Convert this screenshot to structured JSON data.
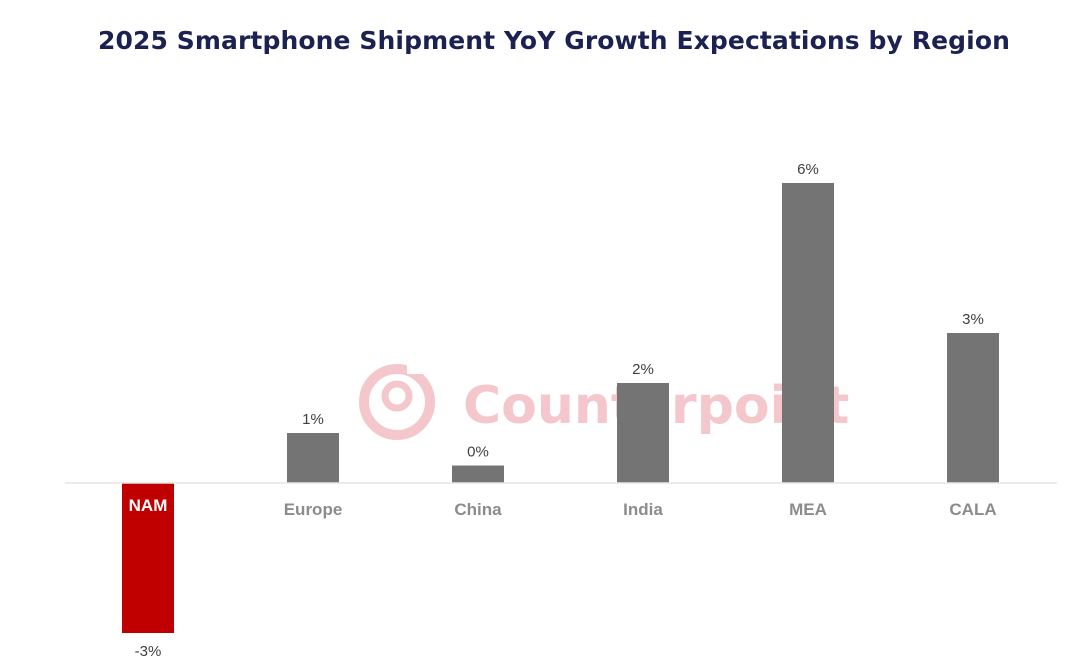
{
  "chart_data": {
    "type": "bar",
    "title": "2025 Smartphone Shipment YoY Growth Expectations by Region",
    "categories": [
      "NAM",
      "Europe",
      "China",
      "India",
      "MEA",
      "CALA"
    ],
    "values": [
      -3,
      1,
      0.35,
      2,
      6,
      3
    ],
    "data_labels": [
      "-3%",
      "1%",
      "0%",
      "2%",
      "6%",
      "3%"
    ],
    "highlight_category": "NAM",
    "unit": "%",
    "xlabel": "",
    "ylabel": "",
    "ylim": [
      -3.2,
      6
    ],
    "grid": false,
    "legend": "none",
    "colors": {
      "default_bar": "#747474",
      "highlight_bar": "#c00000",
      "category_label": "#8c8c8c",
      "highlight_label": "#ffffff",
      "value_label": "#404040",
      "title": "#1b2150",
      "baseline": "#e6e6e6",
      "watermark": "#f3c9ce"
    }
  },
  "watermark": {
    "text": "Counterpoint",
    "logo_icon": "counterpoint-logo-icon"
  }
}
